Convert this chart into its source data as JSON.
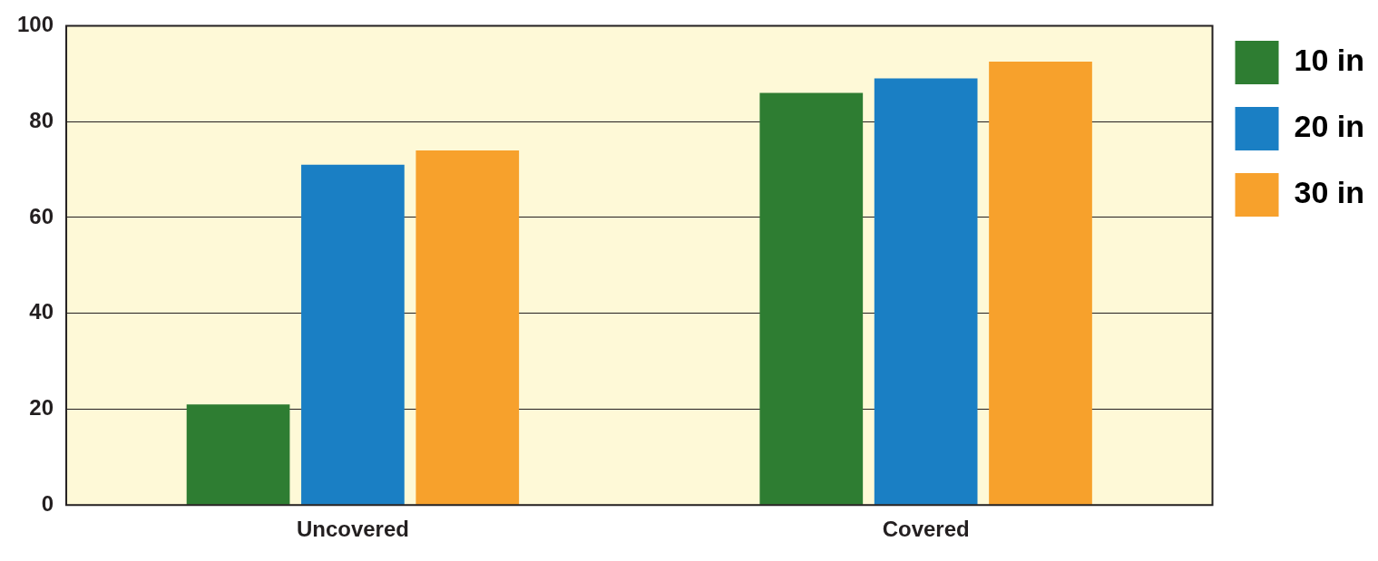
{
  "chart_data": {
    "type": "bar",
    "categories": [
      "Uncovered",
      "Covered"
    ],
    "series": [
      {
        "name": "10 in",
        "color": "#2e7d32",
        "values": [
          21,
          86
        ]
      },
      {
        "name": "20 in",
        "color": "#1a7fc4",
        "values": [
          71,
          89
        ]
      },
      {
        "name": "30 in",
        "color": "#f7a12c",
        "values": [
          74,
          92.5
        ]
      }
    ],
    "ylim": [
      0,
      100
    ],
    "yticks": [
      0,
      20,
      40,
      60,
      80,
      100
    ],
    "grid": "y",
    "legend": "right"
  }
}
